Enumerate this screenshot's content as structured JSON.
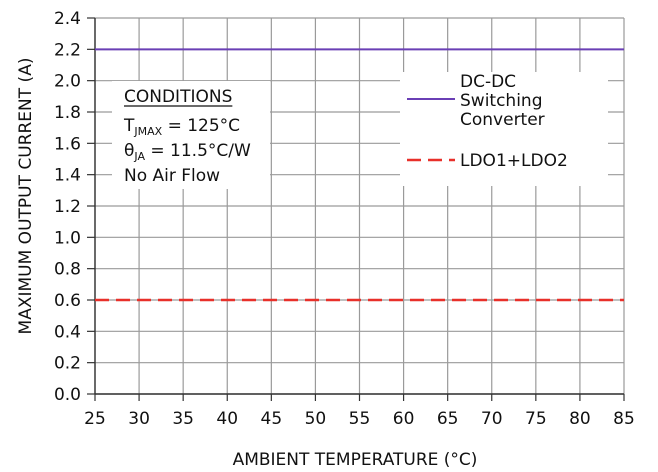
{
  "chart_data": {
    "type": "line",
    "x": [
      25,
      30,
      35,
      40,
      45,
      50,
      55,
      60,
      65,
      70,
      75,
      80,
      85
    ],
    "series": [
      {
        "name": "DC-DC Switching Converter",
        "name_lines": [
          "DC-DC",
          "Switching",
          "Converter"
        ],
        "values": [
          2.2,
          2.2,
          2.2,
          2.2,
          2.2,
          2.2,
          2.2,
          2.2,
          2.2,
          2.2,
          2.2,
          2.2,
          2.2
        ],
        "color": "#6a3fb5",
        "style": "solid"
      },
      {
        "name": "LDO1+LDO2",
        "values": [
          0.6,
          0.6,
          0.6,
          0.6,
          0.6,
          0.6,
          0.6,
          0.6,
          0.6,
          0.6,
          0.6,
          0.6,
          0.6
        ],
        "color": "#e8302a",
        "style": "dashed"
      }
    ],
    "xlabel": "AMBIENT TEMPERATURE (°C)",
    "ylabel": "MAXIMUM OUTPUT CURRENT (A)",
    "xlim": [
      25,
      85
    ],
    "ylim": [
      0,
      2.4
    ],
    "x_ticks": [
      "25",
      "30",
      "35",
      "40",
      "45",
      "50",
      "55",
      "60",
      "65",
      "70",
      "75",
      "80",
      "85"
    ],
    "y_ticks": [
      "0.0",
      "0.2",
      "0.4",
      "0.6",
      "0.8",
      "1.0",
      "1.2",
      "1.4",
      "1.6",
      "1.8",
      "2.0",
      "2.2",
      "2.4"
    ],
    "grid": true,
    "legend_position": "top-right",
    "annotation": {
      "heading": "CONDITIONS",
      "tj_symbol": "T",
      "tj_sub": "JMAX",
      "tj_value": " = 125°C",
      "theta_symbol": "θ",
      "theta_sub": "JA",
      "theta_value": " = 11.5°C/W",
      "airflow": "No Air Flow"
    }
  },
  "colors": {
    "grid": "#9a9a9a",
    "axis": "#333333",
    "text": "#111111"
  }
}
